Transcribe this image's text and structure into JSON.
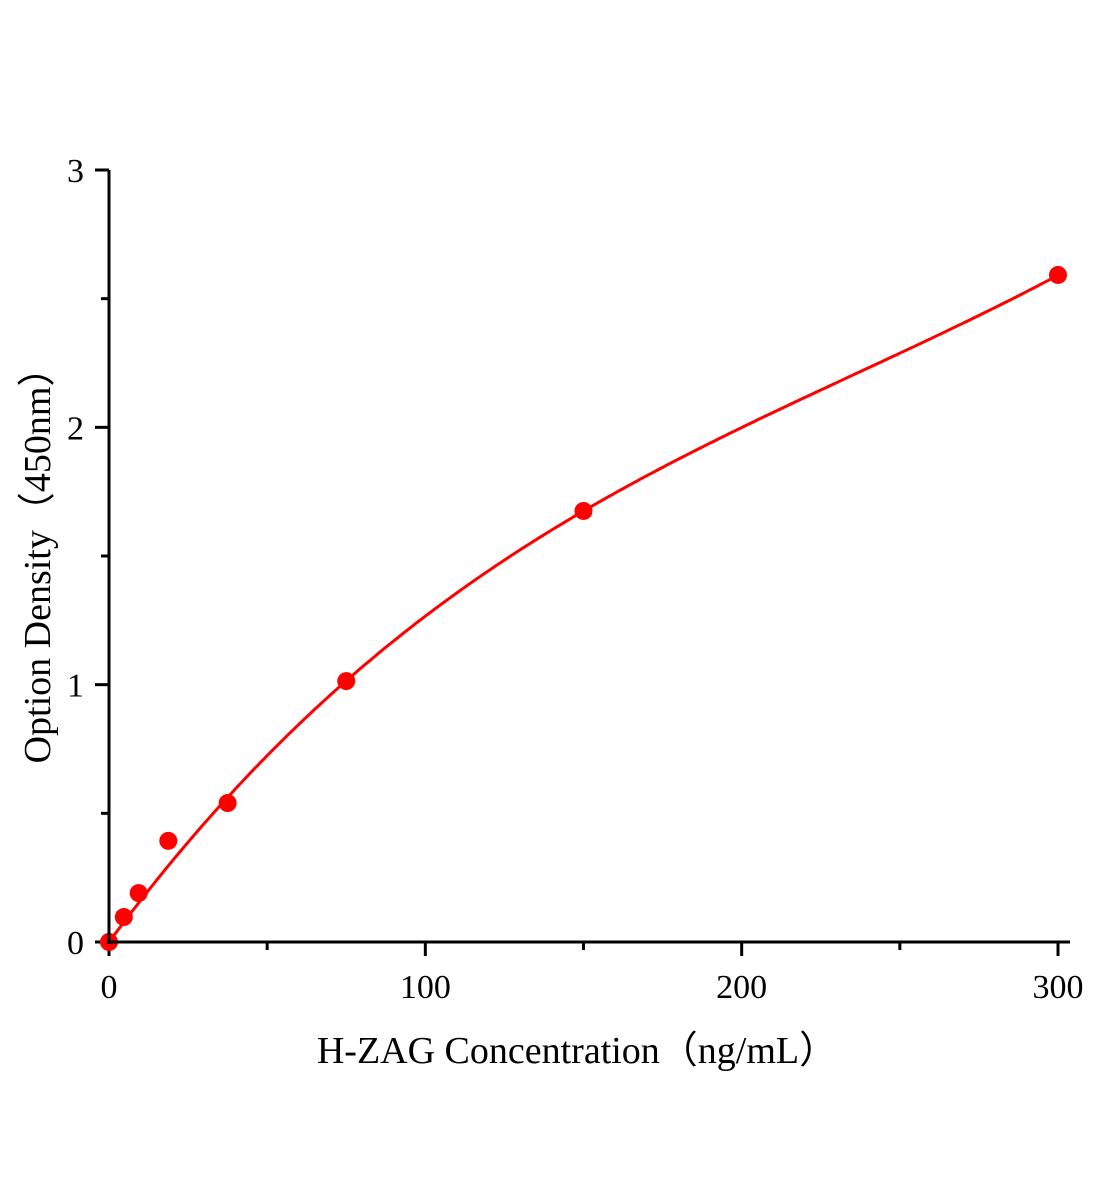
{
  "chart_data": {
    "type": "scatter",
    "title": "",
    "xlabel": "H-ZAG Concentration（ng/mL）",
    "ylabel": "Option Density（450nm）",
    "xlim": [
      0,
      300
    ],
    "ylim": [
      0,
      3
    ],
    "x_ticks": [
      0,
      100,
      200,
      300
    ],
    "x_tick_labels": [
      "0",
      "100",
      "200",
      "300"
    ],
    "x_minor_ticks": [
      50,
      150,
      250
    ],
    "y_ticks": [
      0,
      1,
      2,
      3
    ],
    "y_tick_labels": [
      "0",
      "1",
      "2",
      "3"
    ],
    "y_minor_ticks": [
      0.5,
      1.5,
      2.5
    ],
    "grid": false,
    "series": [
      {
        "x": [
          0,
          4.69,
          9.38,
          18.75,
          37.5,
          75,
          150,
          300
        ],
        "y": [
          0.0,
          0.097,
          0.19,
          0.393,
          0.54,
          1.014,
          1.675,
          2.592
        ],
        "marker": "circle",
        "color": "#ff0000",
        "fit_line": true
      }
    ]
  }
}
